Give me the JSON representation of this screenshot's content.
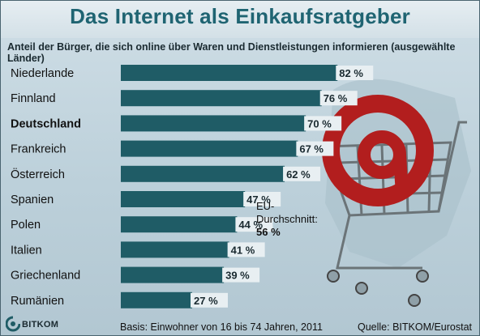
{
  "header": {
    "title": "Das Internet als Einkaufsratgeber",
    "subtitle": "Anteil der Bürger, die sich online über Waren und Dienstleistungen informieren (ausgewählte Länder)"
  },
  "chart_data": {
    "type": "bar",
    "orientation": "horizontal",
    "categories": [
      "Niederlande",
      "Finnland",
      "Deutschland",
      "Frankreich",
      "Österreich",
      "Spanien",
      "Polen",
      "Italien",
      "Griechenland",
      "Rumänien"
    ],
    "highlighted_category": "Deutschland",
    "values": [
      82,
      76,
      70,
      67,
      62,
      47,
      44,
      41,
      39,
      27
    ],
    "value_labels": [
      "82 %",
      "76 %",
      "70 %",
      "67 %",
      "62 %",
      "47 %",
      "44 %",
      "41 %",
      "39 %",
      "27 %"
    ],
    "unit": "%",
    "xlim": [
      0,
      100
    ],
    "bar_color": "#1f5c66",
    "annotation": {
      "label_line1": "EU-",
      "label_line2": "Durchschnitt:",
      "value": "56 %"
    }
  },
  "footer": {
    "basis": "Basis: Einwohner von 16 bis 74 Jahren, 2011",
    "source": "Quelle: BITKOM/Eurostat",
    "logo_text": "BITKOM"
  },
  "icons": [
    "shopping-cart-at-sign-icon",
    "europe-map-icon",
    "bitkom-logo-icon"
  ]
}
